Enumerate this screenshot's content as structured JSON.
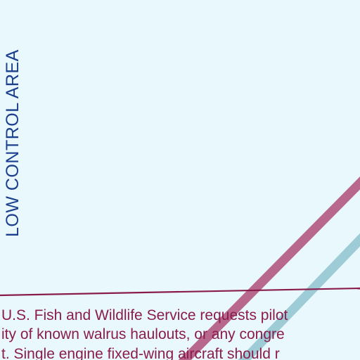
{
  "area_label": "LOW CONTROL AREA",
  "notice": {
    "lines": [
      "U.S. Fish and Wildlife Service requests pilot",
      "ity of known walrus haulouts, or any congre",
      "t.  Single engine fixed-wing aircraft should r"
    ]
  },
  "colors": {
    "background": "#e8f8fd",
    "area_label": "#1b3f8f",
    "notice_text": "#8a1c4c",
    "boundary_line": "#8a1c4c",
    "route_magenta": "#b7688c",
    "route_blue": "#9dcbd6"
  }
}
